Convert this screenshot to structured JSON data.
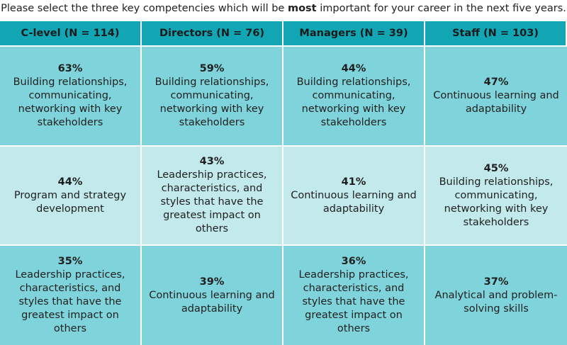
{
  "title": {
    "before": "Please select the three key competencies which will be ",
    "emphasis": "most",
    "after": " important for your career in the next five years."
  },
  "colors": {
    "header": "#12a5b4",
    "row_dark": "#7fd3da",
    "row_light": "#c2e9ec"
  },
  "chart_data": {
    "type": "table",
    "columns": [
      "C-level (N = 114)",
      "Directors (N = 76)",
      "Managers (N = 39)",
      "Staff (N = 103)"
    ],
    "rows": [
      [
        {
          "pct": "63%",
          "label": "Building relationships,\ncommunicating,\nnetworking with key\nstakeholders"
        },
        {
          "pct": "59%",
          "label": "Building relationships,\ncommunicating,\nnetworking with key\nstakeholders"
        },
        {
          "pct": "44%",
          "label": "Building relationships,\ncommunicating,\nnetworking with key\nstakeholders"
        },
        {
          "pct": "47%",
          "label": "Continuous learning and\nadaptability"
        }
      ],
      [
        {
          "pct": "44%",
          "label": "Program and strategy\ndevelopment"
        },
        {
          "pct": "43%",
          "label": "Leadership practices,\ncharacteristics, and\nstyles that have the\ngreatest impact on others"
        },
        {
          "pct": "41%",
          "label": "Continuous learning and\nadaptability"
        },
        {
          "pct": "45%",
          "label": "Building relationships,\ncommunicating,\nnetworking with key\nstakeholders"
        }
      ],
      [
        {
          "pct": "35%",
          "label": "Leadership practices,\ncharacteristics, and\nstyles that have the\ngreatest impact on others"
        },
        {
          "pct": "39%",
          "label": "Continuous learning and\nadaptability"
        },
        {
          "pct": "36%",
          "label": "Leadership practices,\ncharacteristics, and\nstyles that have the\ngreatest impact on others"
        },
        {
          "pct": "37%",
          "label": "Analytical and problem-\nsolving skills"
        }
      ]
    ]
  }
}
